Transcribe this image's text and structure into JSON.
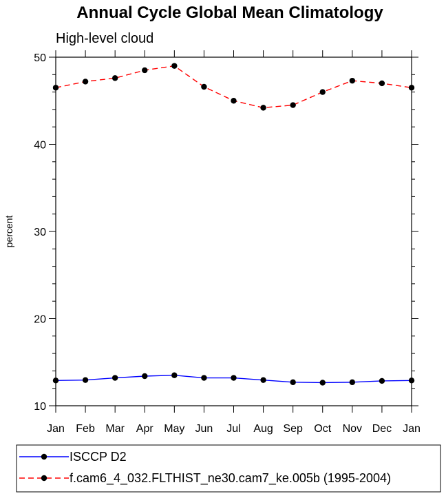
{
  "chart_data": {
    "type": "line",
    "title": "Annual Cycle Global Mean Climatology",
    "subtitle": "High-level cloud",
    "ylabel": "percent",
    "xlabel": "",
    "categories": [
      "Jan",
      "Feb",
      "Mar",
      "Apr",
      "May",
      "Jun",
      "Jul",
      "Aug",
      "Sep",
      "Oct",
      "Nov",
      "Dec",
      "Jan"
    ],
    "ylim": [
      10,
      50
    ],
    "yticks": [
      10,
      20,
      30,
      40,
      50
    ],
    "grid": false,
    "legend_position": "bottom",
    "series": [
      {
        "name": "ISCCP D2",
        "color": "#0000ff",
        "style": "solid",
        "marker": "circle",
        "values": [
          12.9,
          12.95,
          13.2,
          13.4,
          13.5,
          13.2,
          13.2,
          12.95,
          12.7,
          12.65,
          12.7,
          12.85,
          12.9
        ]
      },
      {
        "name": "f.cam6_4_032.FLTHIST_ne30.cam7_ke.005b (1995-2004)",
        "color": "#ff0000",
        "style": "dashed",
        "marker": "circle",
        "values": [
          46.5,
          47.2,
          47.6,
          48.5,
          49.0,
          46.6,
          45.0,
          44.2,
          44.5,
          46.0,
          47.3,
          47.0,
          46.5
        ]
      }
    ]
  }
}
